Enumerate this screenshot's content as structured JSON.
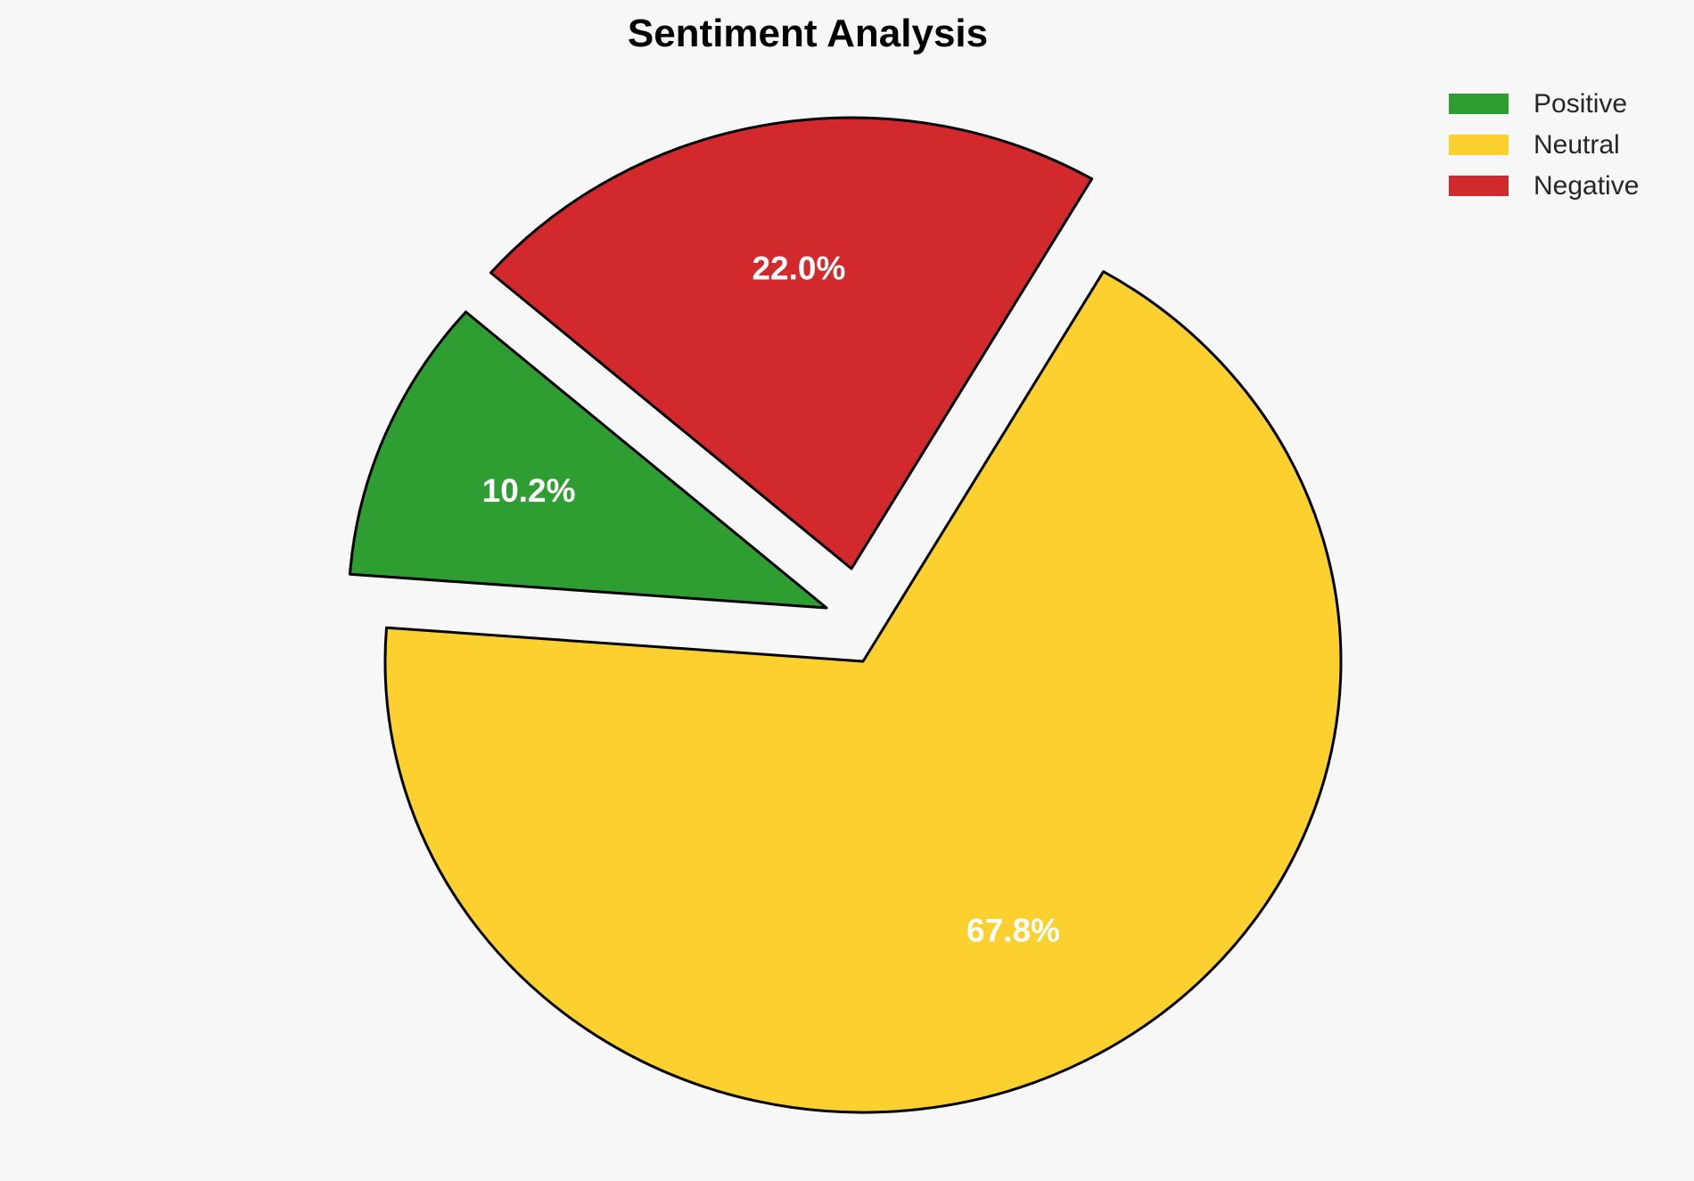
{
  "page": {
    "background_color": "#f7f7f7"
  },
  "chart_data": {
    "type": "pie",
    "title": "Sentiment Analysis",
    "slices": [
      {
        "label": "Positive",
        "value": 10.2,
        "pct_label": "10.2%",
        "color": "#2e9d32"
      },
      {
        "label": "Neutral",
        "value": 67.8,
        "pct_label": "67.8%",
        "color": "#fcd02e"
      },
      {
        "label": "Negative",
        "value": 22.0,
        "pct_label": "22.0%",
        "color": "#d2292d"
      }
    ],
    "start_angle_deg": 139,
    "direction": "counterclockwise",
    "exploded": true,
    "edge_color": "#000000",
    "pct_label_color": "#ffffff",
    "legend_position": "upper right",
    "legend_entries": [
      "Positive",
      "Neutral",
      "Negative"
    ]
  }
}
